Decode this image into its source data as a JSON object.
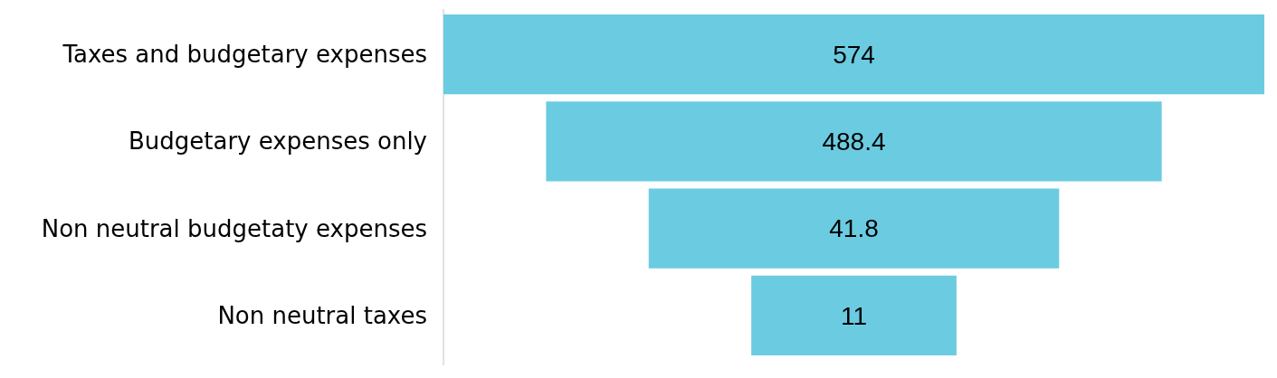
{
  "chart_data": {
    "type": "other",
    "categories": [
      "Taxes and budgetary expenses",
      "Budgetary expenses only",
      "Non neutral budgetaty expenses",
      "Non neutral taxes"
    ],
    "values": [
      574,
      488.4,
      41.8,
      11
    ],
    "color": "#6bcbe1",
    "data_labels": true
  }
}
